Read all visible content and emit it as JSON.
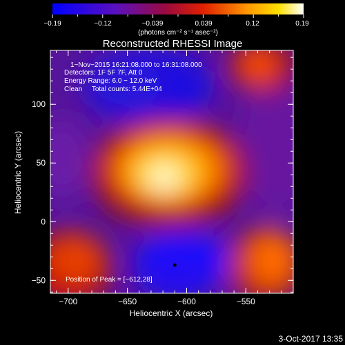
{
  "chart_data": {
    "type": "heatmap",
    "title": "Reconstructed RHESSI Image",
    "xlabel": "Heliocentric X (arcsec)",
    "ylabel": "Heliocentric Y (arcsec)",
    "xlim": [
      -715,
      -510
    ],
    "ylim": [
      -61,
      146
    ],
    "x_ticks": [
      -700,
      -650,
      -600,
      -550
    ],
    "y_ticks": [
      -50,
      0,
      50,
      100
    ],
    "x_tick_labels": [
      "−700",
      "−650",
      "−600",
      "−550"
    ],
    "y_tick_labels": [
      "−50",
      "0",
      "50",
      "100"
    ],
    "colorbar": {
      "range": [
        -0.19,
        0.19
      ],
      "tick_labels": [
        "−0.19",
        "−0.12",
        "−0.039",
        "0.039",
        "0.12",
        "0.19"
      ],
      "unit_label": "(photons cm⁻² s⁻¹ asec⁻²)"
    },
    "annotations": [
      "1−Nov−2015 16:21:08.000 to 16:31:08.000",
      "Detectors: 1F 5F 7F, Att 0",
      "Energy Range: 6.0 − 12.0 keV",
      "Clean     Total counts: 5.44E+04"
    ],
    "peak_label": "Position of Peak = [−612,28]",
    "peak": [
      -612,
      28
    ],
    "negative_minimum_marker": [
      -610,
      -37
    ],
    "grid": false,
    "colors": {
      "map_stops": [
        "#1a1aff",
        "#4a1ad0",
        "#7a1ab0",
        "#aa1020",
        "#d23a00",
        "#ff7a00",
        "#ffd000",
        "#ffffff"
      ]
    }
  },
  "footer": {
    "timestamp": "3-Oct-2017 13:35"
  }
}
